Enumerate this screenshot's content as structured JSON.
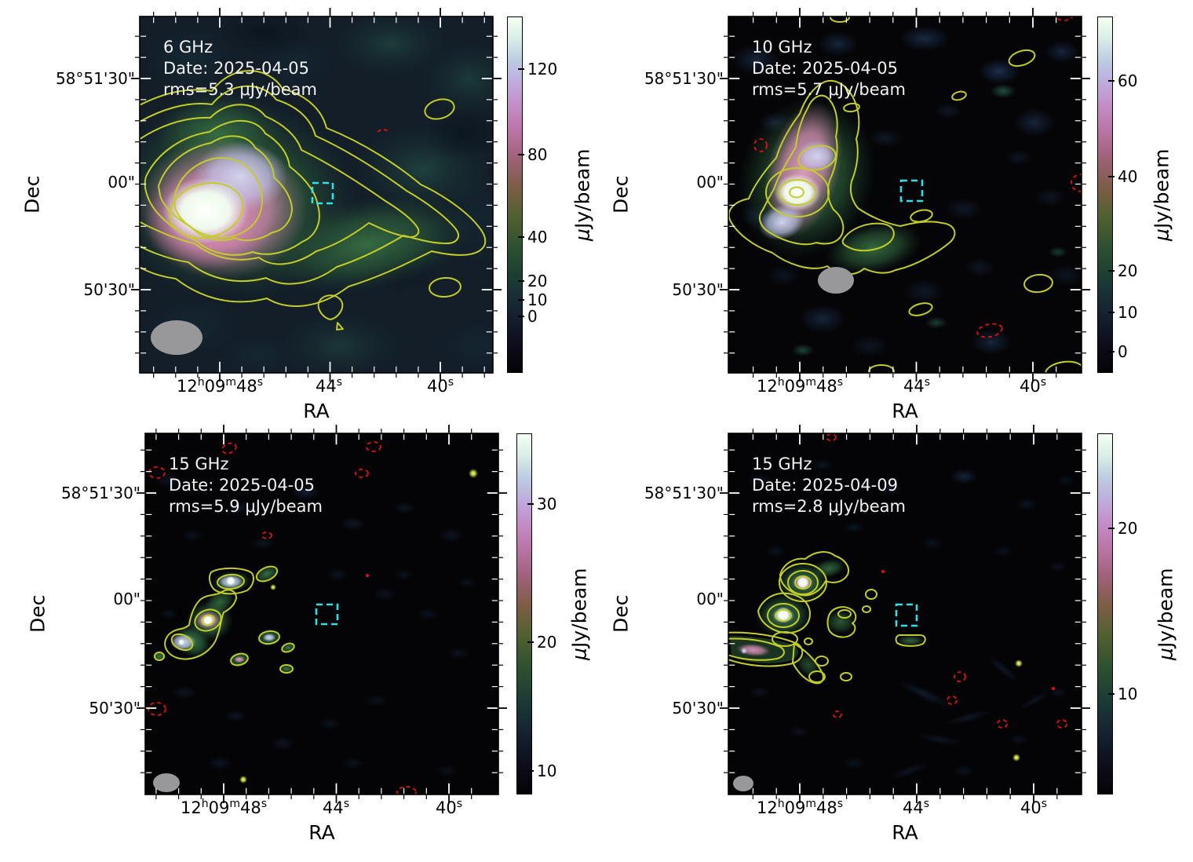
{
  "figure": {
    "xlabel": "RA",
    "ylabel": "Dec",
    "cb_mu": "μ",
    "cb_rest": "Jy/beam",
    "yticks": [
      "58°51'30\"",
      "00\"",
      "50'30\""
    ],
    "xticks": {
      "t0": {
        "p1": "12",
        "u1": "h",
        "p2": "09",
        "u2": "m",
        "p3": "48",
        "u3": "s"
      },
      "t1": {
        "p": "44",
        "u": "s"
      },
      "t2": {
        "p": "40",
        "u": "s"
      }
    },
    "colors": {
      "positive_contour": "#c3cd28",
      "negative_contour": "#e01212",
      "aperture_box": "#2ce2e8",
      "beam_ellipse": "#98989a",
      "annotation_text": "#f2f2f2"
    }
  },
  "panels": [
    {
      "freq": "6 GHz",
      "date": "Date: 2025-04-05",
      "rms": "rms=5.3 μJy/beam",
      "colorbar_ticks": [
        "0",
        "10",
        "20",
        "40",
        "80",
        "120"
      ]
    },
    {
      "freq": "10 GHz",
      "date": "Date: 2025-04-05",
      "rms": "rms=5.7 μJy/beam",
      "colorbar_ticks": [
        "0",
        "10",
        "20",
        "40",
        "60"
      ]
    },
    {
      "freq": "15 GHz",
      "date": "Date: 2025-04-05",
      "rms": "rms=5.9 μJy/beam",
      "colorbar_ticks": [
        "10",
        "20",
        "30"
      ]
    },
    {
      "freq": "15 GHz",
      "date": "Date: 2025-04-09",
      "rms": "rms=2.8 μJy/beam",
      "colorbar_ticks": [
        "10",
        "20"
      ]
    }
  ],
  "chart_data": [
    {
      "type": "heatmap",
      "panel": "top-left",
      "annotations": [
        "6 GHz",
        "Date: 2025-04-05",
        "rms=5.3 μJy/beam"
      ],
      "xlabel": "RA",
      "ylabel": "Dec",
      "xtick_labels": [
        "12h09m48s",
        "44s",
        "40s"
      ],
      "ytick_labels": [
        "58°51'30\"",
        "00\"",
        "50'30\""
      ],
      "colorbar": {
        "label": "μJy/beam",
        "tick_values": [
          0,
          10,
          20,
          40,
          80,
          120
        ],
        "approx_range": [
          -10,
          140
        ]
      },
      "overlays": {
        "positive_contours": "nested yellow solid contours around source",
        "negative_contours": "small red dashed contour near image center-right",
        "aperture_box": "cyan dashed square near RA 12h09m44s, Dec 58°51'00\"",
        "beam_ellipse": "large gray ellipse, lower-left corner"
      },
      "description": "Bright extended radio source east of field center: white peak (~140 μJy/beam) with pink halo and green envelope; low-level tail extends westward; mottled teal background."
    },
    {
      "type": "heatmap",
      "panel": "top-right",
      "annotations": [
        "10 GHz",
        "Date: 2025-04-05",
        "rms=5.7 μJy/beam"
      ],
      "xlabel": "RA",
      "ylabel": "Dec",
      "xtick_labels": [
        "12h09m48s",
        "44s",
        "40s"
      ],
      "ytick_labels": [
        "58°51'30\"",
        "00\"",
        "50'30\""
      ],
      "colorbar": {
        "label": "μJy/beam",
        "tick_values": [
          0,
          10,
          20,
          40,
          60
        ],
        "approx_range": [
          -4,
          75
        ]
      },
      "overlays": {
        "positive_contours": "nested yellow contours on NE-SW elongated source plus several small island contours",
        "negative_contours": "red dashed ellipses scattered (left of source, right-center, corners)",
        "aperture_box": "cyan dashed square near RA 12h09m44s, Dec 58°51'00\"",
        "beam_ellipse": "gray ellipse below source"
      },
      "description": "Compact NE-SW elongated source with bright ringed core, pink column and green tail extending east; faint blue noise blobs on near-black background."
    },
    {
      "type": "heatmap",
      "panel": "bottom-left",
      "annotations": [
        "15 GHz",
        "Date: 2025-04-05",
        "rms=5.9 μJy/beam"
      ],
      "xlabel": "RA",
      "ylabel": "Dec",
      "xtick_labels": [
        "12h09m48s",
        "44s",
        "40s"
      ],
      "ytick_labels": [
        "58°51'30\"",
        "00\"",
        "50'30\""
      ],
      "colorbar": {
        "label": "μJy/beam",
        "tick_values": [
          10,
          20,
          30
        ],
        "approx_range": [
          7,
          36
        ]
      },
      "overlays": {
        "positive_contours": "yellow contours around several compact knots forming an arc",
        "negative_contours": "many small red dashed ellipses across the field",
        "aperture_box": "cyan dashed square near RA 12h09m44s, Dec 58°51'00\"",
        "beam_ellipse": "small gray ellipse, lower-left corner"
      },
      "description": "Source breaks into compact knots: arc-shaped chain with bright ringed core plus surrounding small blobs on a black background."
    },
    {
      "type": "heatmap",
      "panel": "bottom-right",
      "annotations": [
        "15 GHz",
        "Date: 2025-04-09",
        "rms=2.8 μJy/beam"
      ],
      "xlabel": "RA",
      "ylabel": "Dec",
      "xtick_labels": [
        "12h09m48s",
        "44s",
        "40s"
      ],
      "ytick_labels": [
        "58°51'30\"",
        "00\"",
        "50'30\""
      ],
      "colorbar": {
        "label": "μJy/beam",
        "tick_values": [
          10,
          20
        ],
        "approx_range": [
          2,
          26
        ]
      },
      "overlays": {
        "positive_contours": "two bullseye-ringed bright knots, western wing, loops and a capsule-shaped island contour",
        "negative_contours": "small red dashed circles scattered mostly right/bottom",
        "aperture_box": "cyan dashed square near RA 12h09m44s, Dec 58°51'00\"",
        "beam_ellipse": "small gray ellipse, lower-left corner"
      },
      "description": "Deeper 15 GHz epoch: two bright compact knots with concentric contour rings, pink-tinged western wing, connecting green loops; faint blue noise on black background."
    }
  ]
}
